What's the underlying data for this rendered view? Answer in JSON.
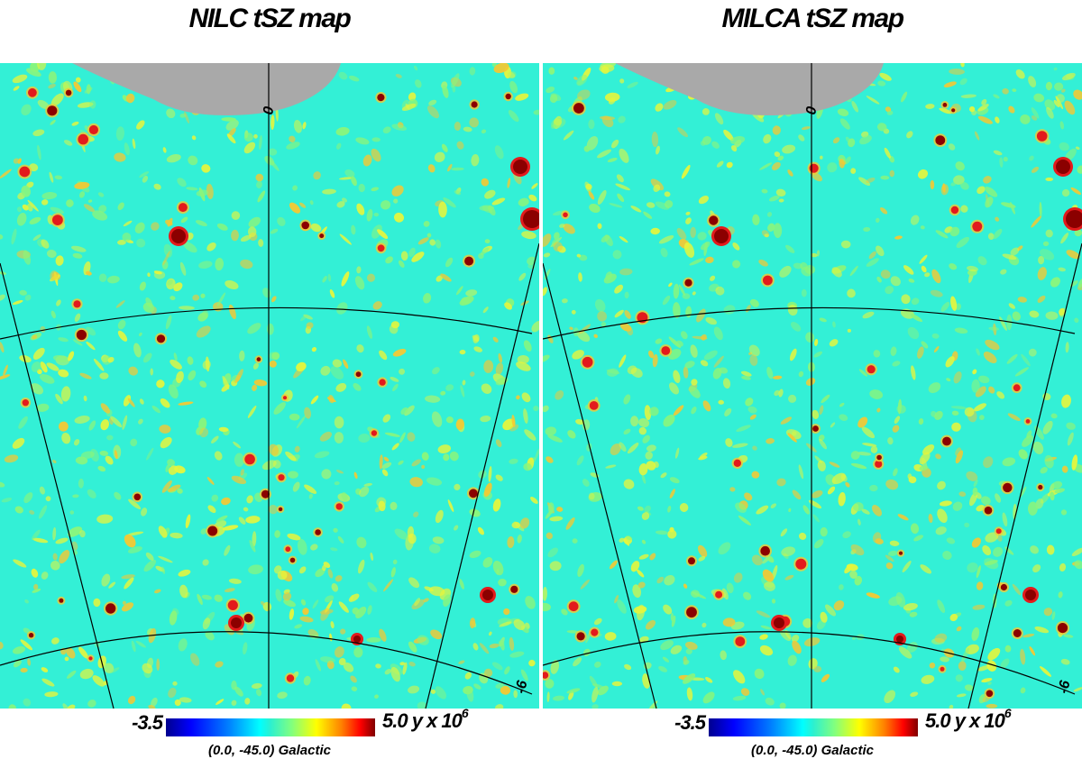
{
  "panels": [
    {
      "title": "NILC tSZ map",
      "colorbar": {
        "min_label": "-3.5",
        "max_label": "5.0 y x 10",
        "max_exp": "6"
      },
      "coords_label": "(0.0, -45.0) Galactic",
      "grid_label": "0",
      "corner_label": "-6",
      "seed": 11
    },
    {
      "title": "MILCA tSZ map",
      "colorbar": {
        "min_label": "-3.5",
        "max_label": "5.0 y x 10",
        "max_exp": "6"
      },
      "coords_label": "(0.0, -45.0) Galactic",
      "grid_label": "0",
      "corner_label": "-6",
      "seed": 29
    }
  ],
  "colors": {
    "background": "#33f0d6",
    "mask": "#a9a9a9",
    "speckle_light": "#8cf57a",
    "speckle_yellow": "#e6f53c",
    "speckle_orange": "#f5c832",
    "source_red": "#e31a1c",
    "source_dark": "#8b0000",
    "grid": "#000000"
  }
}
